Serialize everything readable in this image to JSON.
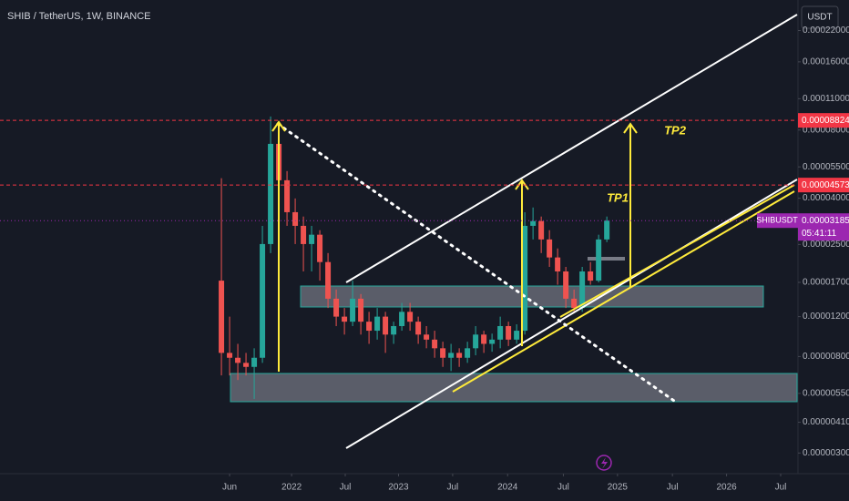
{
  "chart_data": {
    "type": "candlestick",
    "title": "SHIB / TetherUS, 1W, BINANCE",
    "currency": "USDT",
    "log_scale": true,
    "grid": false,
    "up_color": "#26a69a",
    "down_color": "#ef5350",
    "open": [
      1.73e-05,
      8.3e-06,
      7.9e-06,
      7.5e-06,
      7.2e-06,
      7.9e-06,
      2.51e-05,
      6.95e-05,
      4.8e-05,
      3.47e-05,
      3.02e-05,
      2.51e-05,
      2.76e-05,
      2.09e-05,
      1.44e-05,
      1.2e-05,
      1.14e-05,
      1.44e-05,
      1.14e-05,
      1.04e-05,
      1.2e-05,
      1e-05,
      1.09e-05,
      1.26e-05,
      1.14e-05,
      1e-05,
      9.5e-06,
      8.7e-06,
      7.9e-06,
      8.3e-06,
      7.9e-06,
      8.7e-06,
      1e-05,
      9.1e-06,
      9.5e-06,
      1.09e-05,
      9.5e-06,
      1.04e-05,
      3.02e-05,
      3.17e-05,
      2.63e-05,
      2.19e-05,
      1.9e-05,
      1.44e-05,
      1.31e-05,
      1.9e-05,
      1.73e-05,
      2.63e-05
    ],
    "high": [
      4.9e-05,
      1.2e-05,
      9.1e-06,
      8.3e-06,
      8.7e-06,
      3.02e-05,
      9.18e-05,
      8.76e-05,
      5.27e-05,
      3.99e-05,
      3.32e-05,
      3.02e-05,
      2.89e-05,
      2.29e-05,
      1.58e-05,
      1.31e-05,
      1.73e-05,
      1.51e-05,
      1.26e-05,
      1.31e-05,
      1.26e-05,
      1.14e-05,
      1.38e-05,
      1.38e-05,
      1.2e-05,
      1.09e-05,
      1.04e-05,
      9.3e-06,
      9.1e-06,
      8.7e-06,
      9.3e-06,
      1.09e-05,
      1.04e-05,
      1.01e-05,
      1.2e-05,
      1.14e-05,
      1.11e-05,
      3.47e-05,
      3.64e-05,
      3.32e-05,
      2.89e-05,
      2.4e-05,
      1.99e-05,
      1.58e-05,
      1.99e-05,
      2.09e-05,
      2.76e-05,
      3.32e-05
    ],
    "low": [
      6.6e-06,
      6.6e-06,
      6.3e-06,
      6.6e-06,
      5.2e-06,
      7.5e-06,
      2.29e-05,
      3.99e-05,
      3.02e-05,
      2.51e-05,
      1.9e-05,
      1.9e-05,
      1.73e-05,
      1.31e-05,
      1.09e-05,
      1e-05,
      1.09e-05,
      1e-05,
      9.1e-06,
      9.5e-06,
      8.3e-06,
      9.1e-06,
      1.04e-05,
      1.04e-05,
      9.1e-06,
      8.7e-06,
      7.9e-06,
      7.2e-06,
      6.9e-06,
      7.2e-06,
      7.5e-06,
      8.1e-06,
      8.3e-06,
      8.4e-06,
      8.7e-06,
      8.9e-06,
      9.1e-06,
      1e-05,
      2.63e-05,
      2.29e-05,
      1.99e-05,
      1.66e-05,
      1.31e-05,
      1.26e-05,
      1.26e-05,
      1.66e-05,
      1.7e-05,
      2.56e-05
    ],
    "close": [
      8.3e-06,
      7.9e-06,
      7.5e-06,
      7.2e-06,
      7.9e-06,
      2.51e-05,
      6.95e-05,
      4.8e-05,
      3.47e-05,
      3.02e-05,
      2.51e-05,
      2.76e-05,
      2.09e-05,
      1.44e-05,
      1.2e-05,
      1.14e-05,
      1.44e-05,
      1.14e-05,
      1.04e-05,
      1.2e-05,
      1e-05,
      1.09e-05,
      1.26e-05,
      1.14e-05,
      1e-05,
      9.5e-06,
      8.7e-06,
      7.9e-06,
      8.3e-06,
      7.9e-06,
      8.7e-06,
      1e-05,
      9.1e-06,
      9.5e-06,
      1.09e-05,
      9.5e-06,
      1.04e-05,
      3.02e-05,
      3.17e-05,
      2.63e-05,
      2.19e-05,
      1.9e-05,
      1.44e-05,
      1.31e-05,
      1.9e-05,
      1.73e-05,
      2.63e-05,
      3.185e-05
    ],
    "ylim": [
      2.5e-06,
      0.0003
    ],
    "yticks": [
      {
        "value": 0.00022,
        "label": "0.00022000"
      },
      {
        "value": 0.00016,
        "label": "0.00016000"
      },
      {
        "value": 0.00011,
        "label": "0.00011000"
      },
      {
        "value": 8e-05,
        "label": "0.00008000"
      },
      {
        "value": 5.5e-05,
        "label": "0.00005500"
      },
      {
        "value": 4e-05,
        "label": "0.00004000"
      },
      {
        "value": 2.5e-05,
        "label": "0.00002500"
      },
      {
        "value": 1.7e-05,
        "label": "0.00001700"
      },
      {
        "value": 1.2e-05,
        "label": "0.00001200"
      },
      {
        "value": 8e-06,
        "label": "0.00000800"
      },
      {
        "value": 5.5e-06,
        "label": "0.00000550"
      },
      {
        "value": 4.1e-06,
        "label": "0.00000410"
      },
      {
        "value": 3e-06,
        "label": "0.00000300"
      }
    ],
    "xlim": [
      -27,
      70.2
    ],
    "xticks": [
      {
        "value": 1,
        "label": "Jun"
      },
      {
        "value": 8.56,
        "label": "2022"
      },
      {
        "value": 15.1,
        "label": "Jul"
      },
      {
        "value": 21.6,
        "label": "2023"
      },
      {
        "value": 28.2,
        "label": "Jul"
      },
      {
        "value": 34.9,
        "label": "2024"
      },
      {
        "value": 41.7,
        "label": "Jul"
      },
      {
        "value": 48.3,
        "label": "2025"
      },
      {
        "value": 55,
        "label": "Jul"
      },
      {
        "value": 61.6,
        "label": "2026"
      },
      {
        "value": 68.2,
        "label": "Jul"
      }
    ],
    "price_lines": [
      {
        "value": 8.824e-05,
        "color": "#f23645"
      },
      {
        "value": 4.573e-05,
        "color": "#f23645"
      }
    ],
    "last_price": {
      "value": 3.185e-05,
      "symbol": "SHIBUSDT",
      "countdown": "05:41:11",
      "color": "#9c27b0"
    },
    "annotations": [
      {
        "text": "TP1"
      },
      {
        "text": "TP2"
      }
    ]
  }
}
